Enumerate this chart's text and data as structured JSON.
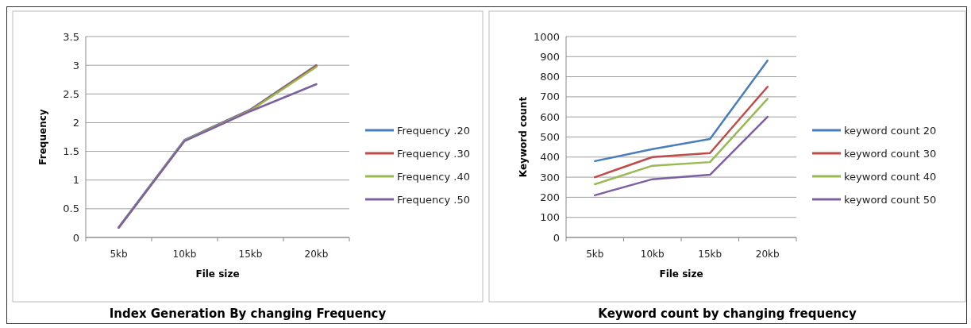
{
  "chart_data": [
    {
      "type": "line",
      "title": "Index Generation By changing Frequency",
      "xlabel": "File size",
      "ylabel": "Frequency",
      "categories": [
        "5kb",
        "10kb",
        "15kb",
        "20kb"
      ],
      "ylim": [
        0,
        3.5
      ],
      "yticks": [
        0,
        0.5,
        1,
        1.5,
        2,
        2.5,
        3,
        3.5
      ],
      "grid": "y",
      "legend": "right",
      "marker": "none",
      "line_style": "solid",
      "series": [
        {
          "name": "Frequency .20",
          "color": "#4a7ebb",
          "values": [
            0.18,
            1.7,
            2.23,
            3.0
          ]
        },
        {
          "name": "Frequency .30",
          "color": "#be4b48",
          "values": [
            0.17,
            1.69,
            2.22,
            2.99
          ]
        },
        {
          "name": "Frequency .40",
          "color": "#98b954",
          "values": [
            0.17,
            1.69,
            2.21,
            2.97
          ]
        },
        {
          "name": "Frequency .50",
          "color": "#7d60a0",
          "values": [
            0.17,
            1.68,
            2.2,
            2.67
          ]
        }
      ]
    },
    {
      "type": "line",
      "title": "Keyword count by changing frequency",
      "xlabel": "File size",
      "ylabel": "Keyword count",
      "categories": [
        "5kb",
        "10kb",
        "15kb",
        "20kb"
      ],
      "ylim": [
        0,
        1000
      ],
      "yticks": [
        0,
        100,
        200,
        300,
        400,
        500,
        600,
        700,
        800,
        900,
        1000
      ],
      "grid": "y",
      "legend": "right",
      "marker": "none",
      "line_style": "solid",
      "series": [
        {
          "name": "keyword count 20",
          "color": "#4a7ebb",
          "values": [
            380,
            440,
            490,
            880
          ]
        },
        {
          "name": "keyword count 30",
          "color": "#be4b48",
          "values": [
            300,
            400,
            420,
            750
          ]
        },
        {
          "name": "keyword count 40",
          "color": "#98b954",
          "values": [
            265,
            357,
            375,
            690
          ]
        },
        {
          "name": "keyword count 50",
          "color": "#7d60a0",
          "values": [
            210,
            290,
            312,
            600
          ]
        }
      ]
    }
  ]
}
